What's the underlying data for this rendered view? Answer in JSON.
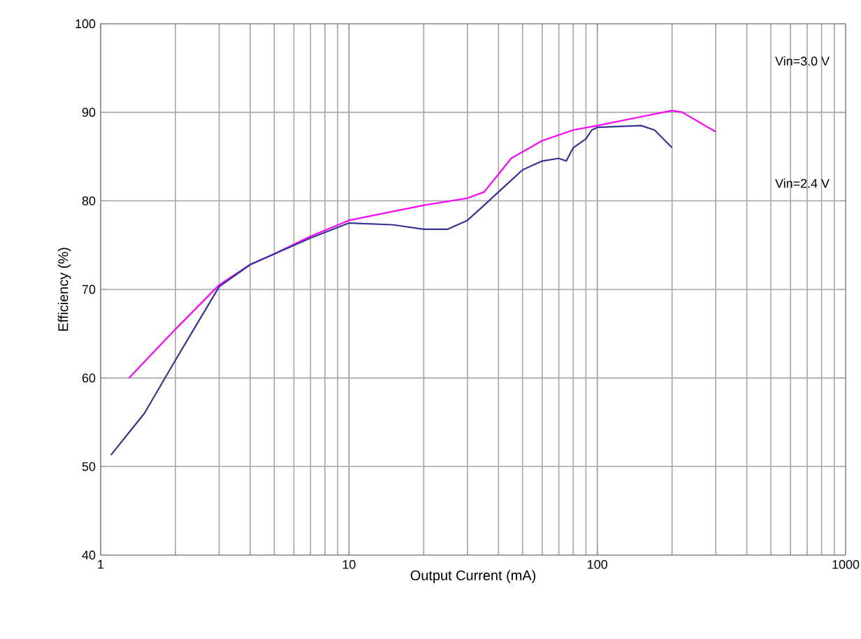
{
  "chart_data": {
    "type": "line",
    "xlabel": "Output Current (mA)",
    "ylabel": "Efficiency (%)",
    "log": "x",
    "xlim": [
      1,
      1000
    ],
    "xticks": [
      1,
      10,
      100,
      1000
    ],
    "ylim": [
      40,
      100
    ],
    "yticks": [
      40,
      50,
      60,
      70,
      80,
      90,
      100
    ],
    "grid": true,
    "marker": "none",
    "series": [
      {
        "name": "Vin=3.0 V",
        "color": "#ff00ff",
        "x": [
          1.3,
          2,
          3,
          4,
          5,
          7,
          10,
          20,
          30,
          35,
          40,
          45,
          60,
          80,
          100,
          150,
          200,
          220,
          300
        ],
        "values": [
          60,
          65.5,
          70.5,
          72.8,
          74,
          76,
          77.8,
          79.5,
          80.3,
          81,
          83,
          84.8,
          86.8,
          88,
          88.5,
          89.5,
          90.2,
          90,
          87.8
        ]
      },
      {
        "name": "Vin=2.4 V",
        "color": "#333399",
        "x": [
          1.1,
          1.5,
          2,
          3,
          4,
          5,
          7,
          10,
          15,
          20,
          25,
          30,
          35,
          40,
          50,
          60,
          70,
          75,
          80,
          90,
          95,
          100,
          150,
          170,
          200
        ],
        "values": [
          51.3,
          56,
          62,
          70.3,
          72.8,
          74,
          75.8,
          77.5,
          77.3,
          76.8,
          76.8,
          77.8,
          79.5,
          81,
          83.5,
          84.5,
          84.8,
          84.5,
          86,
          87,
          88,
          88.3,
          88.5,
          88,
          86
        ]
      }
    ]
  }
}
